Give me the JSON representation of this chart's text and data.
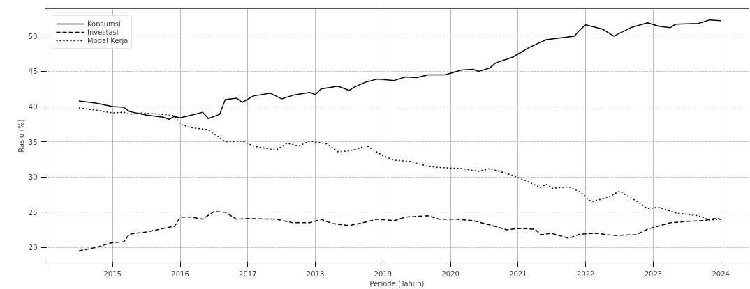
{
  "chart_data": {
    "type": "line",
    "xlabel": "Periode (Tahun)",
    "ylabel": "Rasio (%)",
    "xlim": [
      "2014-01",
      "2024-06"
    ],
    "xticks": [
      "2015",
      "2016",
      "2017",
      "2018",
      "2019",
      "2020",
      "2021",
      "2022",
      "2023",
      "2024"
    ],
    "ylim": [
      17.8,
      53.9
    ],
    "yticks": [
      20,
      25,
      30,
      35,
      40,
      45,
      50
    ],
    "grid": true,
    "legend": "top left",
    "marker": "none",
    "series": [
      {
        "name": "Konsumsi",
        "color": "#000000",
        "line_style": "solid",
        "x": [
          "2014-07",
          "2014-10",
          "2015-01",
          "2015-03",
          "2015-04",
          "2015-07",
          "2015-10",
          "2015-11",
          "2015-12",
          "2016-01",
          "2016-03",
          "2016-05",
          "2016-06",
          "2016-08",
          "2016-09",
          "2016-11",
          "2016-12",
          "2017-02",
          "2017-05",
          "2017-07",
          "2017-09",
          "2017-12",
          "2018-01",
          "2018-02",
          "2018-05",
          "2018-07",
          "2018-08",
          "2018-10",
          "2018-12",
          "2019-03",
          "2019-05",
          "2019-07",
          "2019-09",
          "2019-12",
          "2020-03",
          "2020-05",
          "2020-06",
          "2020-08",
          "2020-09",
          "2020-12",
          "2021-03",
          "2021-06",
          "2021-09",
          "2021-11",
          "2021-12",
          "2022-01",
          "2022-04",
          "2022-06",
          "2022-09",
          "2022-12",
          "2023-02",
          "2023-04",
          "2023-05",
          "2023-09",
          "2023-11",
          "2024-01"
        ],
        "values": [
          40.8,
          40.5,
          40.0,
          39.9,
          39.3,
          38.8,
          38.5,
          38.2,
          38.6,
          38.4,
          38.8,
          39.2,
          38.3,
          38.9,
          41.0,
          41.2,
          40.6,
          41.5,
          41.9,
          41.1,
          41.6,
          42.0,
          41.7,
          42.5,
          42.9,
          42.3,
          42.8,
          43.5,
          43.9,
          43.7,
          44.2,
          44.1,
          44.5,
          44.5,
          45.2,
          45.3,
          45.0,
          45.5,
          46.2,
          47.0,
          48.4,
          49.5,
          49.8,
          50.0,
          50.9,
          51.6,
          51.0,
          50.0,
          51.2,
          51.9,
          51.4,
          51.2,
          51.7,
          51.8,
          52.3,
          52.2
        ]
      },
      {
        "name": "Investasi",
        "color": "#000000",
        "line_style": "dashed",
        "x": [
          "2014-07",
          "2014-10",
          "2015-01",
          "2015-03",
          "2015-04",
          "2015-07",
          "2015-10",
          "2015-12",
          "2016-01",
          "2016-03",
          "2016-05",
          "2016-07",
          "2016-09",
          "2016-11",
          "2017-01",
          "2017-06",
          "2017-09",
          "2017-12",
          "2018-02",
          "2018-04",
          "2018-07",
          "2018-10",
          "2018-12",
          "2019-03",
          "2019-05",
          "2019-09",
          "2019-11",
          "2020-02",
          "2020-05",
          "2020-08",
          "2020-11",
          "2021-01",
          "2021-04",
          "2021-05",
          "2021-07",
          "2021-10",
          "2021-12",
          "2022-03",
          "2022-06",
          "2022-10",
          "2022-12",
          "2023-04",
          "2023-07",
          "2023-10",
          "2023-12",
          "2024-01"
        ],
        "values": [
          19.5,
          20.0,
          20.7,
          20.8,
          21.9,
          22.2,
          22.7,
          23.0,
          24.3,
          24.3,
          24.0,
          25.1,
          25.0,
          24.0,
          24.1,
          24.0,
          23.5,
          23.5,
          24.0,
          23.4,
          23.1,
          23.6,
          24.0,
          23.8,
          24.3,
          24.5,
          24.0,
          24.0,
          23.8,
          23.2,
          22.5,
          22.7,
          22.6,
          21.8,
          22.0,
          21.3,
          21.9,
          22.0,
          21.7,
          21.8,
          22.6,
          23.5,
          23.7,
          23.8,
          24.1,
          24.0
        ]
      },
      {
        "name": "Modal Kerja",
        "color": "#000000",
        "line_style": "dotted",
        "x": [
          "2014-07",
          "2014-10",
          "2015-01",
          "2015-03",
          "2015-04",
          "2015-06",
          "2015-10",
          "2015-12",
          "2016-01",
          "2016-03",
          "2016-06",
          "2016-09",
          "2016-12",
          "2017-02",
          "2017-06",
          "2017-08",
          "2017-10",
          "2017-12",
          "2018-03",
          "2018-05",
          "2018-07",
          "2018-09",
          "2018-10",
          "2019-01",
          "2019-03",
          "2019-06",
          "2019-09",
          "2019-12",
          "2020-03",
          "2020-06",
          "2020-08",
          "2020-11",
          "2021-02",
          "2021-05",
          "2021-06",
          "2021-07",
          "2021-10",
          "2021-12",
          "2022-02",
          "2022-05",
          "2022-07",
          "2022-10",
          "2022-12",
          "2023-02",
          "2023-05",
          "2023-09",
          "2023-11",
          "2024-01"
        ],
        "values": [
          39.8,
          39.5,
          39.1,
          39.2,
          38.9,
          39.1,
          38.9,
          38.7,
          37.5,
          37.0,
          36.7,
          35.0,
          35.1,
          34.4,
          33.8,
          34.8,
          34.4,
          35.1,
          34.7,
          33.6,
          33.7,
          34.1,
          34.5,
          33.0,
          32.4,
          32.2,
          31.5,
          31.3,
          31.2,
          30.8,
          31.2,
          30.5,
          29.6,
          28.5,
          29.0,
          28.4,
          28.6,
          27.9,
          26.5,
          27.1,
          28.0,
          26.6,
          25.5,
          25.7,
          24.9,
          24.5,
          23.9,
          24.0
        ]
      }
    ]
  }
}
